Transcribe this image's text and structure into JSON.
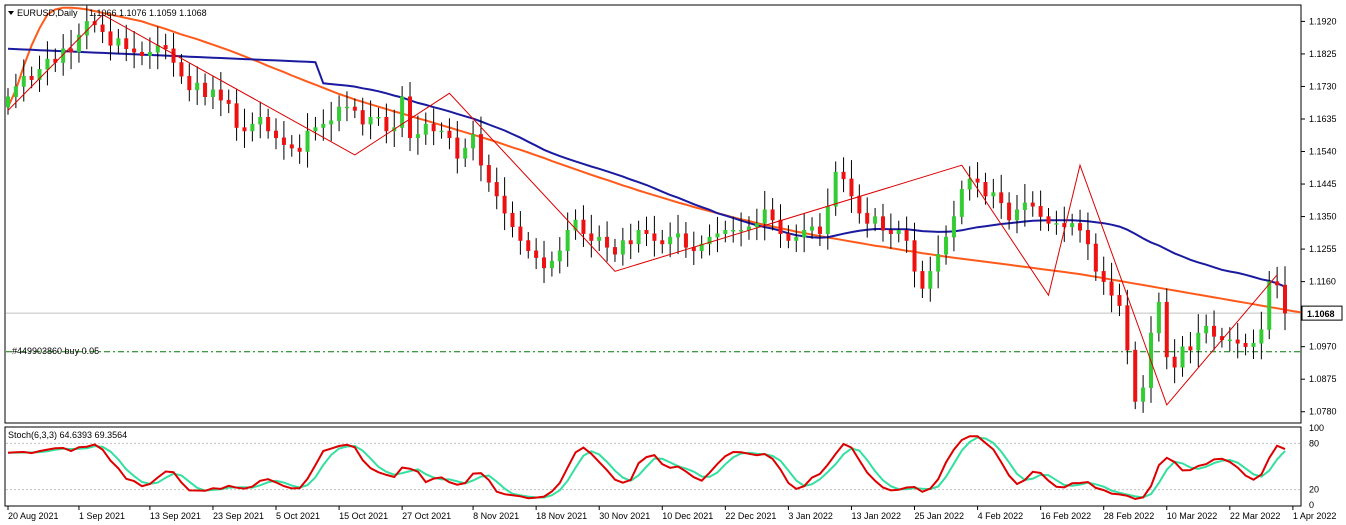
{
  "header": {
    "symbol": "EURUSD,Daily",
    "ohlc": "1.1066 1.1076 1.1059 1.1068"
  },
  "order_line": {
    "label": "#449903860 buy 0.05",
    "price": 1.0955,
    "color": "#007a00"
  },
  "current_price": {
    "label": "1.1068",
    "value": 1.1068
  },
  "stoch_header": "Stoch(6,3,3) 64.6393 69.3564",
  "colors": {
    "bull": "#33cc33",
    "bear": "#ee1111",
    "ma_fast": "#1a1aa0",
    "ma_slow": "#ff5a1a",
    "zigzag": "#dd0000",
    "stoch_main": "#dd0000",
    "stoch_signal": "#33e0a0",
    "grid": "#c0c0c0"
  },
  "chart_data": [
    {
      "type": "candlestick",
      "ylim": [
        1.075,
        1.1965
      ],
      "y_ticks": [
        "1.1920",
        "1.1825",
        "1.1730",
        "1.1635",
        "1.1540",
        "1.1445",
        "1.1350",
        "1.1255",
        "1.1160",
        "1.0970",
        "1.0875",
        "1.0780"
      ],
      "x_labels": [
        {
          "i": 0,
          "label": "20 Aug 2021"
        },
        {
          "i": 9,
          "label": "1 Sep 2021"
        },
        {
          "i": 18,
          "label": "13 Sep 2021"
        },
        {
          "i": 26,
          "label": "23 Sep 2021"
        },
        {
          "i": 34,
          "label": "5 Oct 2021"
        },
        {
          "i": 42,
          "label": "15 Oct 2021"
        },
        {
          "i": 50,
          "label": "27 Oct 2021"
        },
        {
          "i": 59,
          "label": "8 Nov 2021"
        },
        {
          "i": 67,
          "label": "18 Nov 2021"
        },
        {
          "i": 75,
          "label": "30 Nov 2021"
        },
        {
          "i": 83,
          "label": "10 Dec 2021"
        },
        {
          "i": 91,
          "label": "22 Dec 2021"
        },
        {
          "i": 99,
          "label": "3 Jan 2022"
        },
        {
          "i": 107,
          "label": "13 Jan 2022"
        },
        {
          "i": 115,
          "label": "25 Jan 2022"
        },
        {
          "i": 123,
          "label": "4 Feb 2022"
        },
        {
          "i": 131,
          "label": "16 Feb 2022"
        },
        {
          "i": 139,
          "label": "28 Feb 2022"
        },
        {
          "i": 147,
          "label": "10 Mar 2022"
        },
        {
          "i": 155,
          "label": "22 Mar 2022"
        },
        {
          "i": 163,
          "label": "1 Apr 2022"
        }
      ],
      "closes": [
        1.17,
        1.173,
        1.176,
        1.175,
        1.178,
        1.181,
        1.18,
        1.184,
        1.183,
        1.188,
        1.192,
        1.191,
        1.189,
        1.185,
        1.187,
        1.184,
        1.183,
        1.182,
        1.183,
        1.185,
        1.184,
        1.18,
        1.176,
        1.172,
        1.174,
        1.17,
        1.172,
        1.169,
        1.168,
        1.161,
        1.16,
        1.162,
        1.164,
        1.16,
        1.158,
        1.156,
        1.155,
        1.154,
        1.16,
        1.161,
        1.162,
        1.163,
        1.167,
        1.167,
        1.166,
        1.162,
        1.164,
        1.164,
        1.16,
        1.161,
        1.17,
        1.158,
        1.159,
        1.162,
        1.16,
        1.16,
        1.158,
        1.152,
        1.155,
        1.159,
        1.15,
        1.145,
        1.141,
        1.136,
        1.132,
        1.128,
        1.125,
        1.123,
        1.12,
        1.122,
        1.125,
        1.131,
        1.134,
        1.13,
        1.128,
        1.129,
        1.126,
        1.124,
        1.128,
        1.127,
        1.131,
        1.13,
        1.128,
        1.127,
        1.129,
        1.13,
        1.126,
        1.125,
        1.127,
        1.129,
        1.13,
        1.131,
        1.131,
        1.131,
        1.132,
        1.133,
        1.137,
        1.134,
        1.13,
        1.128,
        1.129,
        1.131,
        1.132,
        1.13,
        1.138,
        1.148,
        1.146,
        1.141,
        1.136,
        1.133,
        1.135,
        1.131,
        1.13,
        1.131,
        1.128,
        1.119,
        1.114,
        1.119,
        1.124,
        1.129,
        1.135,
        1.143,
        1.146,
        1.145,
        1.141,
        1.142,
        1.139,
        1.134,
        1.137,
        1.139,
        1.138,
        1.135,
        1.133,
        1.133,
        1.132,
        1.133,
        1.131,
        1.127,
        1.119,
        1.116,
        1.112,
        1.109,
        1.096,
        1.081,
        1.085,
        1.101,
        1.11,
        1.094,
        1.091,
        1.097,
        1.096,
        1.101,
        1.103,
        1.1,
        1.099,
        1.099,
        1.098,
        1.097,
        1.098,
        1.102,
        1.116,
        1.115,
        1.1068
      ],
      "series": [
        {
          "name": "",
          "values": [
            1.167,
            1.172,
            1.179,
            1.185,
            1.19,
            1.194,
            1.1955,
            1.196,
            1.196,
            1.1958,
            1.1955,
            1.195,
            1.1945,
            1.194,
            1.1935,
            1.193,
            1.1925,
            1.192,
            1.1912,
            1.1905,
            1.1898,
            1.189,
            1.1882,
            1.1875,
            1.1868,
            1.186,
            1.1852,
            1.1844,
            1.1836,
            1.1827,
            1.1818,
            1.1809,
            1.18,
            1.179,
            1.1781,
            1.1772,
            1.1762,
            1.1753,
            1.1744,
            1.1735,
            1.1726,
            1.1717,
            1.1708,
            1.17,
            1.1692,
            1.1685,
            1.1678,
            1.1671,
            1.1664,
            1.1657,
            1.1651,
            1.1644,
            1.1637,
            1.1631,
            1.1624,
            1.1617,
            1.161,
            1.1603,
            1.1596,
            1.1589,
            1.1582,
            1.1575,
            1.1568,
            1.156,
            1.1552,
            1.1545,
            1.1537,
            1.1529,
            1.1521,
            1.1512,
            1.1504,
            1.1496,
            1.1488,
            1.148,
            1.1472,
            1.1464,
            1.1457,
            1.1449,
            1.1441,
            1.1434,
            1.1426,
            1.1419,
            1.1412,
            1.1405,
            1.1398,
            1.1391,
            1.1385,
            1.1378,
            1.1372,
            1.1366,
            1.136,
            1.1354,
            1.1348,
            1.1342,
            1.1337,
            1.1331,
            1.1326,
            1.1321,
            1.1316,
            1.1311,
            1.1306,
            1.1302,
            1.1297,
            1.1293,
            1.1289,
            1.1285,
            1.1281,
            1.1277,
            1.1273,
            1.1269,
            1.1265,
            1.1262,
            1.1258,
            1.1254,
            1.125,
            1.1247,
            1.1243,
            1.124,
            1.1236,
            1.1233,
            1.123,
            1.1227,
            1.1224,
            1.1221,
            1.1218,
            1.1215,
            1.1212,
            1.1209,
            1.1206,
            1.1203,
            1.12,
            1.1197,
            1.1194,
            1.1191,
            1.1188,
            1.1185,
            1.1182,
            1.1178,
            1.1174,
            1.117,
            1.1166,
            1.1162,
            1.1158,
            1.1154,
            1.115,
            1.1146,
            1.1142,
            1.1138,
            1.1134,
            1.113,
            1.1126,
            1.1122,
            1.1118,
            1.1114,
            1.111,
            1.1106,
            1.1102,
            1.1098,
            1.1094,
            1.109,
            1.1086,
            1.1082,
            1.1078,
            1.1074,
            1.107
          ]
        },
        {
          "name": "",
          "values": []
        }
      ],
      "zigzag": [
        [
          0,
          1.166
        ],
        [
          12,
          1.194
        ],
        [
          44,
          1.153
        ],
        [
          56,
          1.171
        ],
        [
          77,
          1.119
        ],
        [
          121,
          1.15
        ],
        [
          132,
          1.112
        ],
        [
          136,
          1.15
        ],
        [
          147,
          1.08
        ],
        [
          161,
          1.118
        ]
      ]
    },
    {
      "type": "line",
      "ylim": [
        0,
        100
      ],
      "y_ticks": [
        "100",
        "80",
        "20",
        "0"
      ],
      "levels": [
        20,
        80
      ]
    }
  ]
}
